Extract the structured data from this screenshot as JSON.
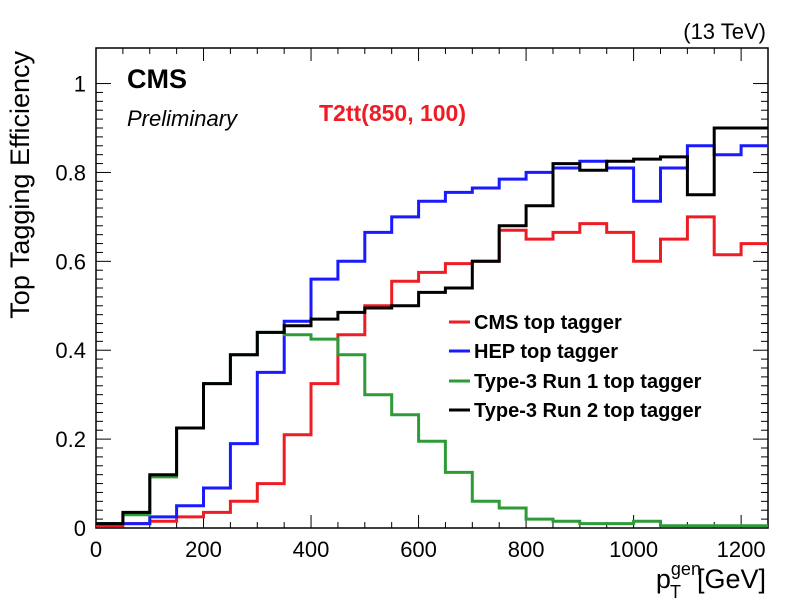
{
  "colors": {
    "cms": "#ee1c24",
    "hep": "#1a1aff",
    "type3run1": "#2e9b38",
    "type3run2": "#000000",
    "signal": "#ee1c24"
  },
  "header": {
    "energy": "(13 TeV)",
    "experiment": "CMS",
    "status": "Preliminary",
    "signal": "T2tt(850, 100)"
  },
  "chart_data": {
    "type": "line",
    "style": "step-histogram",
    "xlabel_main": "p",
    "xlabel_sup": "gen",
    "xlabel_sub": "T",
    "xlabel_unit": "[GeV]",
    "ylabel": "Top Tagging Efficiency",
    "xlim": [
      0,
      1250
    ],
    "ylim": [
      0,
      1.08
    ],
    "bin_width": 50,
    "x_ticks": [
      "0",
      "200",
      "400",
      "600",
      "800",
      "1000",
      "1200"
    ],
    "y_ticks": [
      "0",
      "0.2",
      "0.4",
      "0.6",
      "0.8",
      "1"
    ],
    "legend_position": "center-right",
    "bin_edges": [
      0,
      50,
      100,
      150,
      200,
      250,
      300,
      350,
      400,
      450,
      500,
      550,
      600,
      650,
      700,
      750,
      800,
      850,
      900,
      950,
      1000,
      1050,
      1100,
      1150,
      1200,
      1250
    ],
    "series": [
      {
        "name": "CMS top tagger",
        "color_key": "cms",
        "values": [
          0.005,
          0.01,
          0.015,
          0.025,
          0.035,
          0.06,
          0.1,
          0.21,
          0.325,
          0.435,
          0.5,
          0.555,
          0.575,
          0.595,
          0.6,
          0.67,
          0.65,
          0.665,
          0.685,
          0.665,
          0.6,
          0.65,
          0.7,
          0.615,
          0.64
        ]
      },
      {
        "name": "HEP top tagger",
        "color_key": "hep",
        "values": [
          0.01,
          0.01,
          0.025,
          0.05,
          0.09,
          0.19,
          0.35,
          0.465,
          0.56,
          0.6,
          0.665,
          0.7,
          0.735,
          0.755,
          0.765,
          0.785,
          0.8,
          0.81,
          0.825,
          0.81,
          0.735,
          0.81,
          0.86,
          0.84,
          0.86
        ]
      },
      {
        "name": "Type-3 Run 1 top tagger",
        "color_key": "type3run1",
        "values": [
          0.01,
          0.03,
          0.115,
          0.225,
          0.325,
          0.39,
          0.44,
          0.435,
          0.425,
          0.39,
          0.3,
          0.255,
          0.195,
          0.125,
          0.06,
          0.045,
          0.02,
          0.015,
          0.01,
          0.01,
          0.015,
          0.005,
          0.005,
          0.005,
          0.005
        ]
      },
      {
        "name": "Type-3 Run 2 top tagger",
        "color_key": "type3run2",
        "values": [
          0.01,
          0.035,
          0.12,
          0.225,
          0.325,
          0.39,
          0.44,
          0.455,
          0.47,
          0.485,
          0.495,
          0.5,
          0.53,
          0.54,
          0.6,
          0.68,
          0.725,
          0.82,
          0.805,
          0.825,
          0.83,
          0.835,
          0.75,
          0.9,
          0.9
        ]
      }
    ]
  }
}
